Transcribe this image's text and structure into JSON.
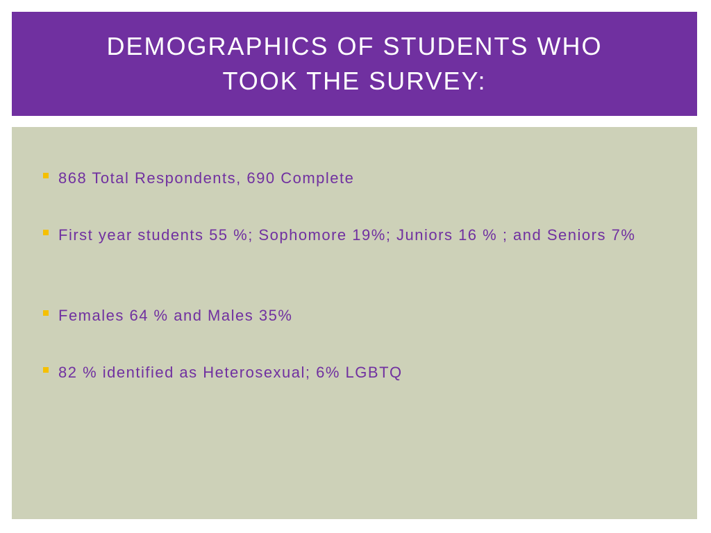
{
  "slide": {
    "title_line_1": "DEMOGRAPHICS OF STUDENTS WHO",
    "title_line_2": "TOOK THE SURVEY:",
    "bullets": [
      "868 Total Respondents, 690 Complete",
      "First year students 55 %;  Sophomore 19%; Juniors 16 % ; and Seniors 7%",
      "Females 64 % and Males 35%",
      "82 % identified as Heterosexual; 6% LGBTQ"
    ]
  },
  "colors": {
    "title_bar": "#7030a0",
    "title_text": "#ffffff",
    "content_background": "#cdd1b8",
    "bullet_text": "#7030a0",
    "bullet_marker": "#f5c000"
  }
}
